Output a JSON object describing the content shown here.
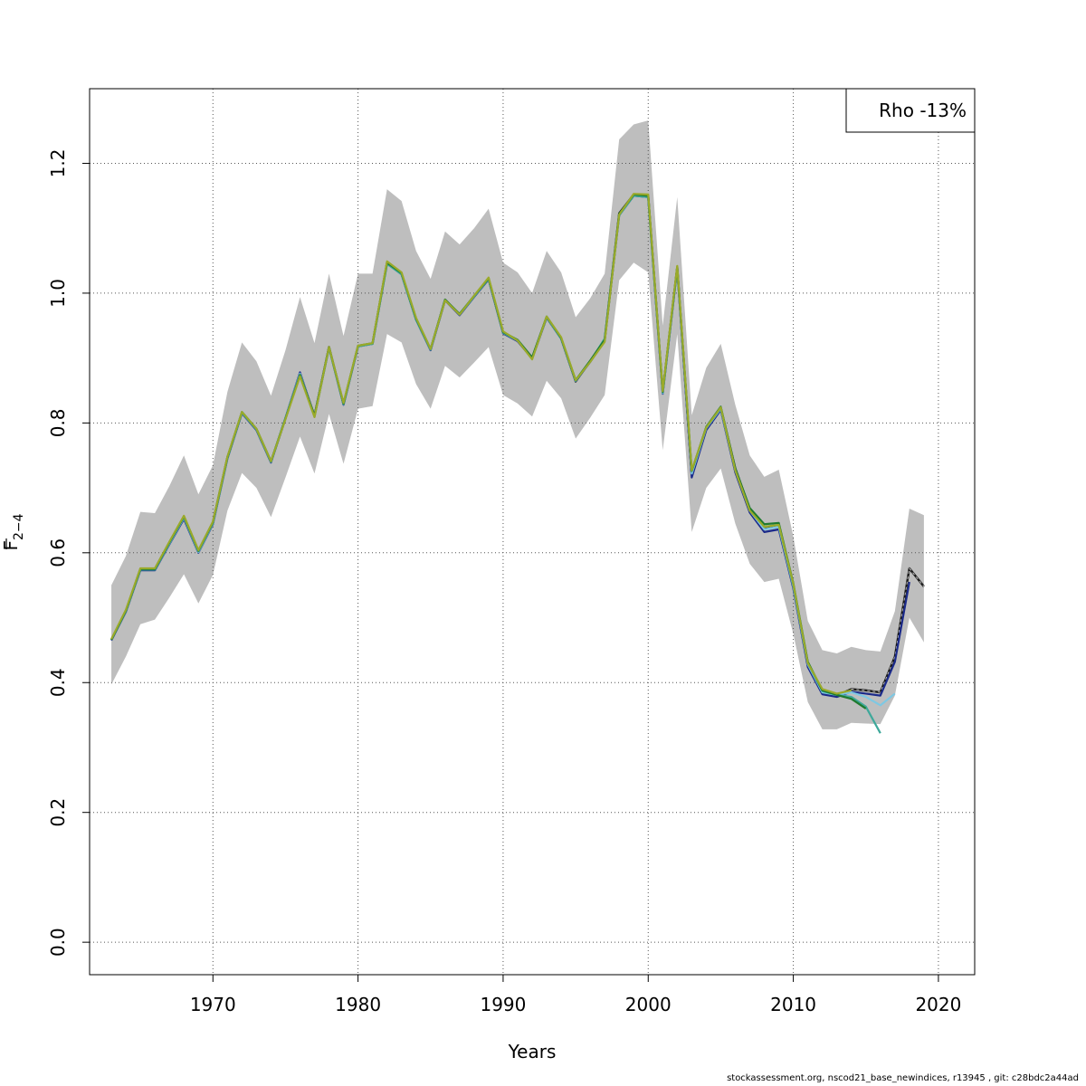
{
  "chart_data": {
    "type": "line",
    "title": "",
    "xlabel": "Years",
    "ylabel_main": "F",
    "ylabel_sub": "2−4",
    "xlim": [
      1961.5,
      2022.5
    ],
    "ylim": [
      -0.05,
      1.315
    ],
    "x_ticks": [
      1970,
      1980,
      1990,
      2000,
      2010,
      2020
    ],
    "y_ticks": [
      0.0,
      0.2,
      0.4,
      0.6,
      0.8,
      1.0,
      1.2
    ],
    "y_tick_labels": [
      "0.0",
      "0.2",
      "0.4",
      "0.6",
      "0.8",
      "1.0",
      "1.2"
    ],
    "grid": true,
    "legend": {
      "placement": "top-right",
      "text": "Rho -13%"
    },
    "confidence_band": {
      "color": "#bebebe",
      "years": [
        1963,
        1964,
        1965,
        1966,
        1967,
        1968,
        1969,
        1970,
        1971,
        1972,
        1973,
        1974,
        1975,
        1976,
        1977,
        1978,
        1979,
        1980,
        1981,
        1982,
        1983,
        1984,
        1985,
        1986,
        1987,
        1988,
        1989,
        1990,
        1991,
        1992,
        1993,
        1994,
        1995,
        1996,
        1997,
        1998,
        1999,
        2000,
        2001,
        2002,
        2003,
        2004,
        2005,
        2006,
        2007,
        2008,
        2009,
        2010,
        2011,
        2012,
        2013,
        2014,
        2015,
        2016,
        2017,
        2018,
        2019
      ],
      "upper": [
        0.55,
        0.595,
        0.663,
        0.661,
        0.703,
        0.75,
        0.69,
        0.735,
        0.848,
        0.924,
        0.895,
        0.842,
        0.912,
        0.994,
        0.923,
        1.03,
        0.934,
        1.03,
        1.03,
        1.16,
        1.142,
        1.065,
        1.022,
        1.095,
        1.075,
        1.1,
        1.13,
        1.047,
        1.032,
        1.0,
        1.065,
        1.032,
        0.963,
        0.992,
        1.03,
        1.237,
        1.26,
        1.266,
        0.95,
        1.148,
        0.812,
        0.885,
        0.922,
        0.828,
        0.75,
        0.717,
        0.728,
        0.625,
        0.495,
        0.45,
        0.445,
        0.455,
        0.45,
        0.448,
        0.51,
        0.668,
        0.658
      ],
      "lower": [
        0.397,
        0.44,
        0.49,
        0.497,
        0.531,
        0.567,
        0.522,
        0.566,
        0.665,
        0.723,
        0.7,
        0.655,
        0.716,
        0.779,
        0.722,
        0.814,
        0.737,
        0.822,
        0.826,
        0.937,
        0.924,
        0.86,
        0.822,
        0.888,
        0.87,
        0.893,
        0.917,
        0.843,
        0.83,
        0.81,
        0.865,
        0.838,
        0.776,
        0.808,
        0.843,
        1.02,
        1.047,
        1.032,
        0.758,
        0.937,
        0.632,
        0.7,
        0.73,
        0.645,
        0.583,
        0.555,
        0.56,
        0.475,
        0.37,
        0.328,
        0.328,
        0.338,
        0.337,
        0.336,
        0.38,
        0.5,
        0.462
      ]
    },
    "series": [
      {
        "color": "#1a1a1a",
        "dashed": true,
        "x": [
          1963,
          1964,
          1965,
          1966,
          1967,
          1968,
          1969,
          1970,
          1971,
          1972,
          1973,
          1974,
          1975,
          1976,
          1977,
          1978,
          1979,
          1980,
          1981,
          1982,
          1983,
          1984,
          1985,
          1986,
          1987,
          1988,
          1989,
          1990,
          1991,
          1992,
          1993,
          1994,
          1995,
          1996,
          1997,
          1998,
          1999,
          2000,
          2001,
          2002,
          2003,
          2004,
          2005,
          2006,
          2007,
          2008,
          2009,
          2010,
          2011,
          2012,
          2013,
          2014,
          2015,
          2016,
          2017,
          2018,
          2019
        ],
        "y": [
          0.466,
          0.51,
          0.575,
          0.575,
          0.616,
          0.656,
          0.603,
          0.647,
          0.747,
          0.816,
          0.79,
          0.74,
          0.807,
          0.875,
          0.811,
          0.917,
          0.829,
          0.918,
          0.922,
          1.047,
          1.03,
          0.96,
          0.913,
          0.99,
          0.967,
          0.995,
          1.022,
          0.939,
          0.927,
          0.9,
          0.963,
          0.93,
          0.864,
          0.895,
          0.928,
          1.123,
          1.152,
          1.15,
          0.847,
          1.04,
          0.72,
          0.792,
          0.823,
          0.73,
          0.667,
          0.637,
          0.64,
          0.548,
          0.43,
          0.385,
          0.38,
          0.39,
          0.388,
          0.385,
          0.44,
          0.576,
          0.548
        ]
      },
      {
        "color": "#1b2a8a",
        "dashed": false,
        "x": [
          1963,
          1964,
          1965,
          1966,
          1967,
          1968,
          1969,
          1970,
          1971,
          1972,
          1973,
          1974,
          1975,
          1976,
          1977,
          1978,
          1979,
          1980,
          1981,
          1982,
          1983,
          1984,
          1985,
          1986,
          1987,
          1988,
          1989,
          1990,
          1991,
          1992,
          1993,
          1994,
          1995,
          1996,
          1997,
          1998,
          1999,
          2000,
          2001,
          2002,
          2003,
          2004,
          2005,
          2006,
          2007,
          2008,
          2009,
          2010,
          2011,
          2012,
          2013,
          2014,
          2015,
          2016,
          2017,
          2018
        ],
        "y": [
          0.465,
          0.509,
          0.573,
          0.573,
          0.613,
          0.652,
          0.6,
          0.644,
          0.745,
          0.815,
          0.789,
          0.739,
          0.808,
          0.878,
          0.81,
          0.916,
          0.828,
          0.918,
          0.922,
          1.046,
          1.029,
          0.959,
          0.912,
          0.989,
          0.966,
          0.994,
          1.021,
          0.938,
          0.926,
          0.899,
          0.962,
          0.93,
          0.865,
          0.894,
          0.927,
          1.12,
          1.15,
          1.148,
          0.845,
          1.038,
          0.716,
          0.789,
          0.82,
          0.724,
          0.662,
          0.632,
          0.636,
          0.545,
          0.424,
          0.382,
          0.378,
          0.386,
          0.383,
          0.38,
          0.432,
          0.555
        ]
      },
      {
        "color": "#7ec8e3",
        "dashed": false,
        "x": [
          1963,
          1964,
          1965,
          1966,
          1967,
          1968,
          1969,
          1970,
          1971,
          1972,
          1973,
          1974,
          1975,
          1976,
          1977,
          1978,
          1979,
          1980,
          1981,
          1982,
          1983,
          1984,
          1985,
          1986,
          1987,
          1988,
          1989,
          1990,
          1991,
          1992,
          1993,
          1994,
          1995,
          1996,
          1997,
          1998,
          1999,
          2000,
          2001,
          2002,
          2003,
          2004,
          2005,
          2006,
          2007,
          2008,
          2009,
          2010,
          2011,
          2012,
          2013,
          2014,
          2015,
          2016,
          2017
        ],
        "y": [
          0.466,
          0.51,
          0.574,
          0.574,
          0.614,
          0.654,
          0.601,
          0.645,
          0.746,
          0.816,
          0.79,
          0.74,
          0.808,
          0.876,
          0.81,
          0.916,
          0.829,
          0.918,
          0.922,
          1.046,
          1.03,
          0.96,
          0.913,
          0.99,
          0.967,
          0.995,
          1.022,
          0.939,
          0.927,
          0.9,
          0.963,
          0.93,
          0.865,
          0.895,
          0.928,
          1.121,
          1.151,
          1.149,
          0.846,
          1.039,
          0.722,
          0.792,
          0.822,
          0.727,
          0.665,
          0.636,
          0.64,
          0.548,
          0.428,
          0.385,
          0.381,
          0.385,
          0.378,
          0.365,
          0.383
        ]
      },
      {
        "color": "#3ea89a",
        "dashed": false,
        "x": [
          1963,
          1964,
          1965,
          1966,
          1967,
          1968,
          1969,
          1970,
          1971,
          1972,
          1973,
          1974,
          1975,
          1976,
          1977,
          1978,
          1979,
          1980,
          1981,
          1982,
          1983,
          1984,
          1985,
          1986,
          1987,
          1988,
          1989,
          1990,
          1991,
          1992,
          1993,
          1994,
          1995,
          1996,
          1997,
          1998,
          1999,
          2000,
          2001,
          2002,
          2003,
          2004,
          2005,
          2006,
          2007,
          2008,
          2009,
          2010,
          2011,
          2012,
          2013,
          2014,
          2015,
          2016
        ],
        "y": [
          0.466,
          0.51,
          0.574,
          0.574,
          0.615,
          0.655,
          0.602,
          0.646,
          0.746,
          0.816,
          0.79,
          0.74,
          0.807,
          0.874,
          0.81,
          0.916,
          0.829,
          0.918,
          0.922,
          1.045,
          1.029,
          0.959,
          0.913,
          0.99,
          0.967,
          0.995,
          1.022,
          0.939,
          0.927,
          0.9,
          0.963,
          0.93,
          0.865,
          0.895,
          0.93,
          1.12,
          1.15,
          1.148,
          0.847,
          1.039,
          0.726,
          0.793,
          0.823,
          0.728,
          0.667,
          0.64,
          0.643,
          0.55,
          0.43,
          0.387,
          0.381,
          0.378,
          0.363,
          0.322
        ]
      },
      {
        "color": "#1e7a2e",
        "dashed": false,
        "x": [
          1963,
          1964,
          1965,
          1966,
          1967,
          1968,
          1969,
          1970,
          1971,
          1972,
          1973,
          1974,
          1975,
          1976,
          1977,
          1978,
          1979,
          1980,
          1981,
          1982,
          1983,
          1984,
          1985,
          1986,
          1987,
          1988,
          1989,
          1990,
          1991,
          1992,
          1993,
          1994,
          1995,
          1996,
          1997,
          1998,
          1999,
          2000,
          2001,
          2002,
          2003,
          2004,
          2005,
          2006,
          2007,
          2008,
          2009,
          2010,
          2011,
          2012,
          2013,
          2014,
          2015
        ],
        "y": [
          0.466,
          0.511,
          0.575,
          0.575,
          0.616,
          0.656,
          0.603,
          0.647,
          0.747,
          0.817,
          0.791,
          0.741,
          0.807,
          0.874,
          0.811,
          0.917,
          0.83,
          0.919,
          0.923,
          1.047,
          1.031,
          0.961,
          0.914,
          0.99,
          0.968,
          0.996,
          1.023,
          0.94,
          0.928,
          0.901,
          0.964,
          0.931,
          0.866,
          0.896,
          0.928,
          1.122,
          1.152,
          1.15,
          0.848,
          1.04,
          0.726,
          0.794,
          0.825,
          0.73,
          0.669,
          0.644,
          0.646,
          0.553,
          0.432,
          0.388,
          0.381,
          0.375,
          0.36
        ]
      },
      {
        "color": "#9aaa2a",
        "dashed": false,
        "x": [
          1963,
          1964,
          1965,
          1966,
          1967,
          1968,
          1969,
          1970,
          1971,
          1972,
          1973,
          1974,
          1975,
          1976,
          1977,
          1978,
          1979,
          1980,
          1981,
          1982,
          1983,
          1984,
          1985,
          1986,
          1987,
          1988,
          1989,
          1990,
          1991,
          1992,
          1993,
          1994,
          1995,
          1996,
          1997,
          1998,
          1999,
          2000,
          2001,
          2002,
          2003,
          2004,
          2005,
          2006,
          2007,
          2008,
          2009,
          2010,
          2011,
          2012,
          2013,
          2014
        ],
        "y": [
          0.467,
          0.512,
          0.576,
          0.576,
          0.617,
          0.657,
          0.604,
          0.648,
          0.748,
          0.817,
          0.791,
          0.741,
          0.806,
          0.872,
          0.809,
          0.917,
          0.831,
          0.919,
          0.923,
          1.049,
          1.032,
          0.962,
          0.914,
          0.989,
          0.967,
          0.996,
          1.024,
          0.941,
          0.927,
          0.898,
          0.964,
          0.932,
          0.866,
          0.894,
          0.925,
          1.121,
          1.153,
          1.152,
          0.849,
          1.042,
          0.727,
          0.793,
          0.824,
          0.727,
          0.665,
          0.64,
          0.643,
          0.552,
          0.43,
          0.39,
          0.383,
          0.388
        ]
      }
    ]
  },
  "footer": {
    "source": "stockassessment.org, nscod21_base_newindices, r13945 , git: c28bdc2a44ad"
  }
}
